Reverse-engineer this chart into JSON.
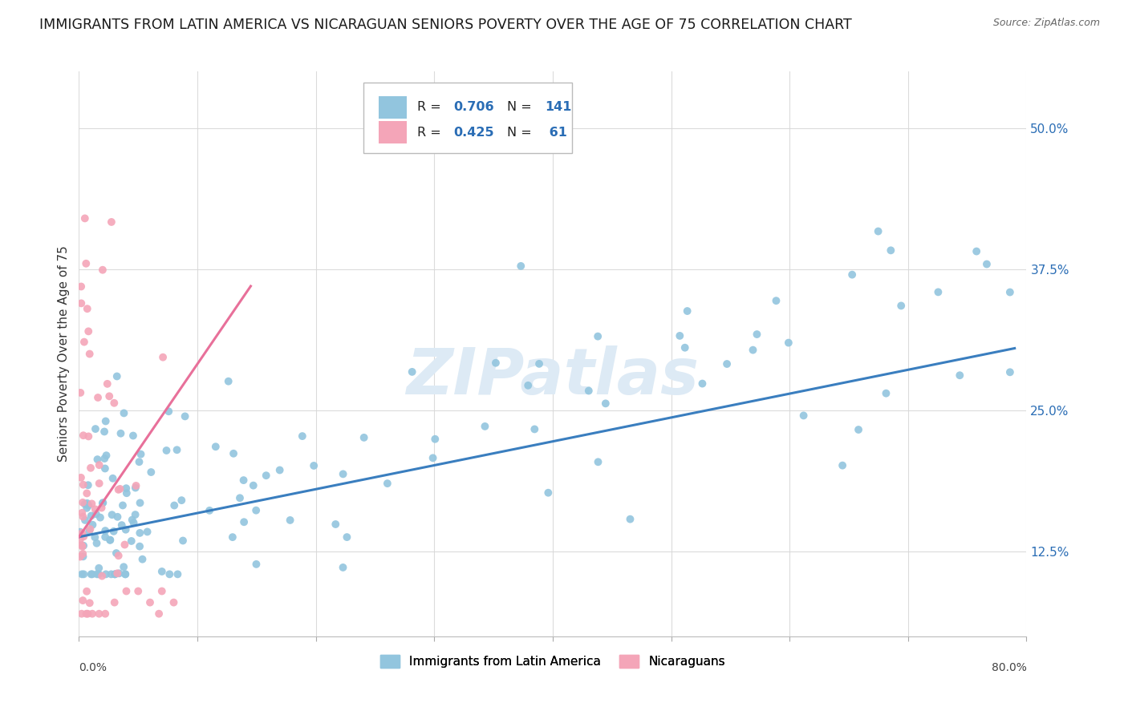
{
  "title": "IMMIGRANTS FROM LATIN AMERICA VS NICARAGUAN SENIORS POVERTY OVER THE AGE OF 75 CORRELATION CHART",
  "source": "Source: ZipAtlas.com",
  "ylabel": "Seniors Poverty Over the Age of 75",
  "xlim": [
    0.0,
    0.8
  ],
  "ylim": [
    0.05,
    0.55
  ],
  "yticks": [
    0.125,
    0.25,
    0.375,
    0.5
  ],
  "yticklabels": [
    "12.5%",
    "25.0%",
    "37.5%",
    "50.0%"
  ],
  "legend_R1": "0.706",
  "legend_N1": "141",
  "legend_R2": "0.425",
  "legend_N2": " 61",
  "blue_color": "#92c5de",
  "pink_color": "#f4a5b8",
  "blue_line_color": "#3a7ebf",
  "pink_line_color": "#e8709a",
  "watermark": "ZIPatlas",
  "watermark_color": "#ddeaf5",
  "background_color": "#ffffff",
  "legend_text_color": "#2a6db5",
  "title_fontsize": 12.5,
  "axis_label_fontsize": 11,
  "tick_fontsize": 10
}
